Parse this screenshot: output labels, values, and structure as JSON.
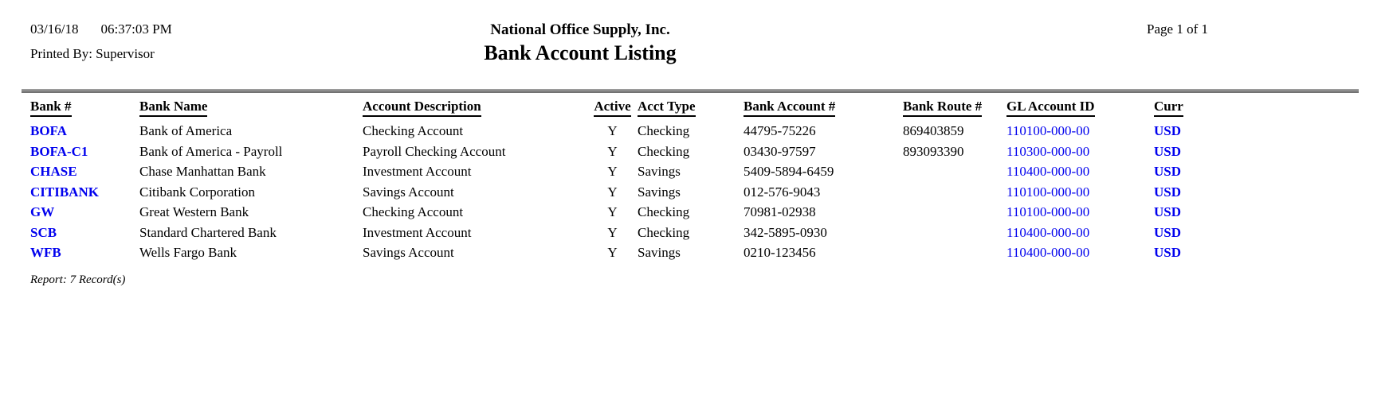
{
  "header": {
    "date": "03/16/18",
    "time": "06:37:03 PM",
    "printed_by_label": "Printed By:",
    "printed_by_user": "Supervisor",
    "company": "National Office Supply, Inc.",
    "title": "Bank Account Listing",
    "page": "Page 1 of 1"
  },
  "table": {
    "headers": {
      "bank_no": "Bank #",
      "bank_name": "Bank Name",
      "description": "Account Description",
      "active": "Active",
      "acct_type": "Acct Type",
      "account_no": "Bank Account #",
      "route_no": "Bank Route #",
      "gl_account": "GL Account ID",
      "curr": "Curr"
    },
    "rows": [
      {
        "bank_no": "BOFA",
        "bank_name": "Bank of America",
        "description": "Checking Account",
        "active": "Y",
        "acct_type": "Checking",
        "account_no": "44795-75226",
        "route_no": "869403859",
        "gl_account": "110100-000-00",
        "curr": "USD"
      },
      {
        "bank_no": "BOFA-C1",
        "bank_name": "Bank of America - Payroll",
        "description": "Payroll Checking Account",
        "active": "Y",
        "acct_type": "Checking",
        "account_no": "03430-97597",
        "route_no": "893093390",
        "gl_account": "110300-000-00",
        "curr": "USD"
      },
      {
        "bank_no": "CHASE",
        "bank_name": "Chase Manhattan Bank",
        "description": "Investment Account",
        "active": "Y",
        "acct_type": "Savings",
        "account_no": "5409-5894-6459",
        "route_no": "",
        "gl_account": "110400-000-00",
        "curr": "USD"
      },
      {
        "bank_no": "CITIBANK",
        "bank_name": "Citibank Corporation",
        "description": "Savings Account",
        "active": "Y",
        "acct_type": "Savings",
        "account_no": "012-576-9043",
        "route_no": "",
        "gl_account": "110100-000-00",
        "curr": "USD"
      },
      {
        "bank_no": "GW",
        "bank_name": "Great Western Bank",
        "description": "Checking Account",
        "active": "Y",
        "acct_type": "Checking",
        "account_no": "70981-02938",
        "route_no": "",
        "gl_account": "110100-000-00",
        "curr": "USD"
      },
      {
        "bank_no": "SCB",
        "bank_name": "Standard Chartered Bank",
        "description": "Investment Account",
        "active": "Y",
        "acct_type": "Checking",
        "account_no": "342-5895-0930",
        "route_no": "",
        "gl_account": "110400-000-00",
        "curr": "USD"
      },
      {
        "bank_no": "WFB",
        "bank_name": "Wells Fargo Bank",
        "description": "Savings Account",
        "active": "Y",
        "acct_type": "Savings",
        "account_no": "0210-123456",
        "route_no": "",
        "gl_account": "110400-000-00",
        "curr": "USD"
      }
    ]
  },
  "footer": {
    "summary": "Report: 7 Record(s)"
  },
  "colors": {
    "link_blue": "#0000ee",
    "rule_gray": "#808080",
    "text_black": "#000000"
  }
}
